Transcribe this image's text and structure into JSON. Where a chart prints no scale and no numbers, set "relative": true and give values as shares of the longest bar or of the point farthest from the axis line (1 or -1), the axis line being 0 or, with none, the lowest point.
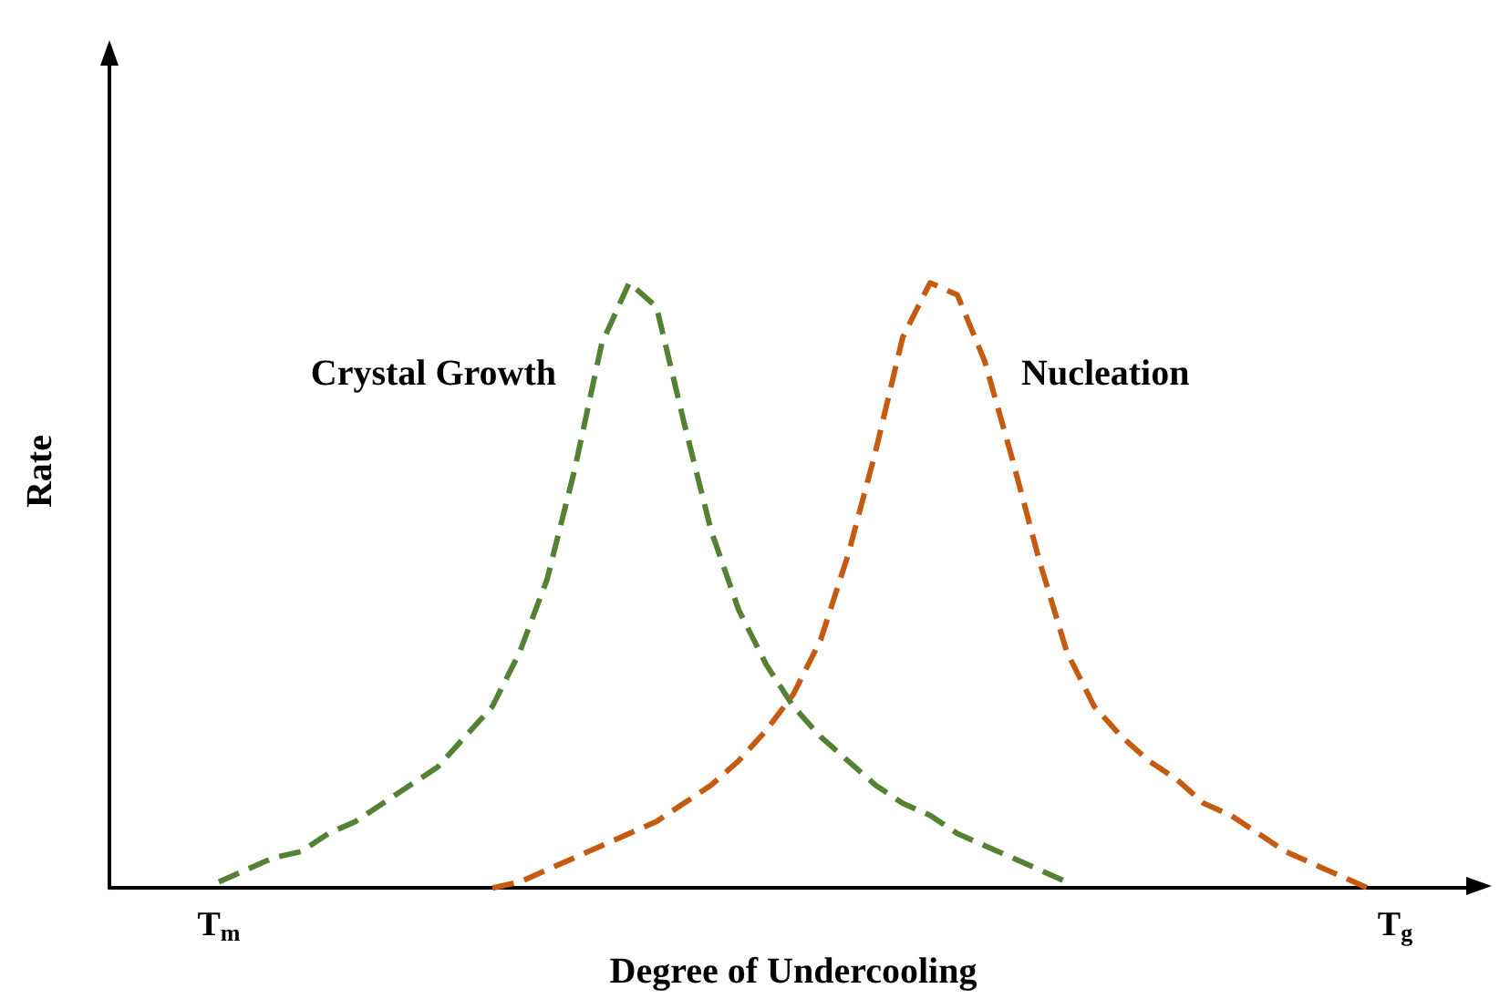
{
  "chart_data": {
    "type": "line",
    "relative": true,
    "xlabel": "Degree of Undercooling",
    "ylabel": "Rate",
    "marker": "none",
    "line_style": "dashed",
    "legend": false,
    "grid": false,
    "categories": [
      null,
      null,
      null,
      null,
      "T$_{m}$",
      null,
      null,
      null,
      null,
      null,
      null,
      null,
      null,
      null,
      null,
      null,
      null,
      null,
      null,
      null,
      null,
      null,
      null,
      null,
      null,
      null,
      null,
      null,
      null,
      null,
      null,
      null,
      null,
      null,
      null,
      null,
      null,
      null,
      null,
      null,
      null,
      null,
      null,
      null,
      null,
      null,
      null,
      "T$_{g}$",
      null,
      null,
      null
    ],
    "series": [
      {
        "name": "Crystal Growth",
        "color": "#548235",
        "values": [
          null,
          null,
          null,
          null,
          0.01,
          0.03,
          0.05,
          0.06,
          0.09,
          0.11,
          0.14,
          0.17,
          0.2,
          0.25,
          0.3,
          0.39,
          0.51,
          0.69,
          0.9,
          1,
          0.96,
          0.77,
          0.59,
          0.46,
          0.37,
          0.3,
          0.25,
          0.21,
          0.17,
          0.14,
          0.12,
          0.09,
          0.07,
          0.05,
          0.03,
          0.01,
          null,
          null,
          null,
          null,
          null,
          null,
          null,
          null,
          null,
          null,
          null,
          null,
          null,
          null,
          null
        ]
      },
      {
        "name": "Nucleation",
        "color": "#c55a11",
        "values": [
          null,
          null,
          null,
          null,
          null,
          null,
          null,
          null,
          null,
          null,
          null,
          null,
          null,
          null,
          0,
          0.01,
          0.03,
          0.05,
          0.07,
          0.09,
          0.11,
          0.14,
          0.17,
          0.21,
          0.26,
          0.32,
          0.41,
          0.55,
          0.72,
          0.91,
          1,
          0.98,
          0.87,
          0.71,
          0.54,
          0.39,
          0.3,
          0.25,
          0.21,
          0.18,
          0.14,
          0.12,
          0.09,
          0.06,
          0.04,
          0.02,
          0,
          null,
          null,
          null,
          null
        ]
      }
    ]
  }
}
